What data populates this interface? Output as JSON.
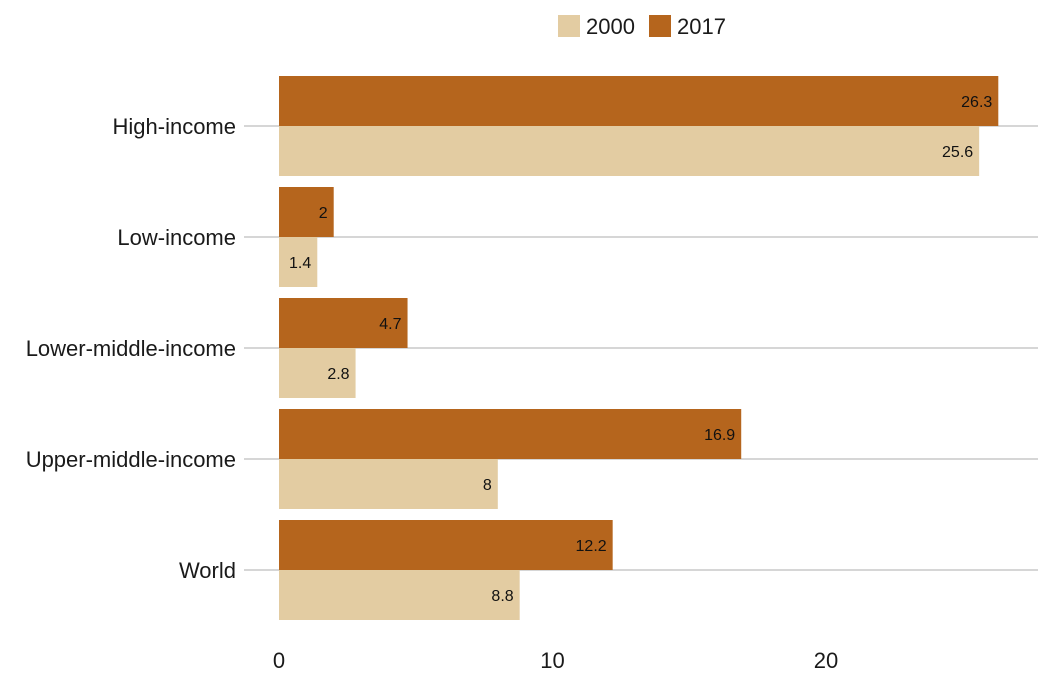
{
  "chart_data": {
    "type": "bar",
    "orientation": "horizontal",
    "categories": [
      "High-income",
      "Low-income",
      "Lower-middle-income",
      "Upper-middle-income",
      "World"
    ],
    "series": [
      {
        "name": "2017",
        "color": "#b5651d",
        "values": [
          26.3,
          2,
          4.7,
          16.9,
          12.2
        ]
      },
      {
        "name": "2000",
        "color": "#e3cca2",
        "values": [
          25.6,
          1.4,
          2.8,
          8,
          8.8
        ]
      }
    ],
    "legend": {
      "placement": "top-center",
      "order": [
        "2000",
        "2017"
      ]
    },
    "xticks": [
      0,
      10,
      20
    ],
    "xlim": [
      0,
      27.5
    ],
    "grid": "horizontal-at-categories",
    "title": "",
    "xlabel": "",
    "ylabel": ""
  }
}
